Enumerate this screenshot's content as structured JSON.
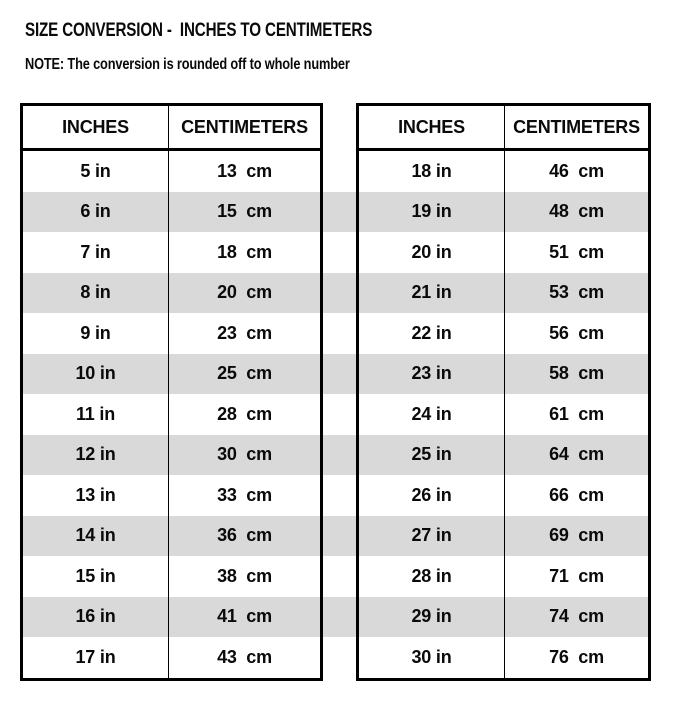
{
  "page": {
    "title": "SIZE CONVERSION -  INCHES TO CENTIMETERS",
    "note": "NOTE: The conversion is rounded off to whole number"
  },
  "colors": {
    "stripe": "#d9d9d9",
    "border": "#000000",
    "text": "#0a0a0a"
  },
  "tables": [
    {
      "name": "inches-to-centimeters-left",
      "headers": [
        "INCHES",
        "CENTIMETERS"
      ],
      "rows": [
        [
          "5 in",
          "13  cm"
        ],
        [
          "6 in",
          "15  cm"
        ],
        [
          "7 in",
          "18  cm"
        ],
        [
          "8 in",
          "20  cm"
        ],
        [
          "9 in",
          "23  cm"
        ],
        [
          "10 in",
          "25  cm"
        ],
        [
          "11 in",
          "28  cm"
        ],
        [
          "12 in",
          "30  cm"
        ],
        [
          "13 in",
          "33  cm"
        ],
        [
          "14 in",
          "36  cm"
        ],
        [
          "15 in",
          "38  cm"
        ],
        [
          "16 in",
          "41  cm"
        ],
        [
          "17 in",
          "43  cm"
        ]
      ]
    },
    {
      "name": "inches-to-centimeters-right",
      "headers": [
        "INCHES",
        "CENTIMETERS"
      ],
      "rows": [
        [
          "18 in",
          "46  cm"
        ],
        [
          "19 in",
          "48  cm"
        ],
        [
          "20 in",
          "51  cm"
        ],
        [
          "21 in",
          "53  cm"
        ],
        [
          "22 in",
          "56  cm"
        ],
        [
          "23 in",
          "58  cm"
        ],
        [
          "24 in",
          "61  cm"
        ],
        [
          "25 in",
          "64  cm"
        ],
        [
          "26 in",
          "66  cm"
        ],
        [
          "27 in",
          "69  cm"
        ],
        [
          "28 in",
          "71  cm"
        ],
        [
          "29 in",
          "74  cm"
        ],
        [
          "30 in",
          "76  cm"
        ]
      ]
    }
  ]
}
